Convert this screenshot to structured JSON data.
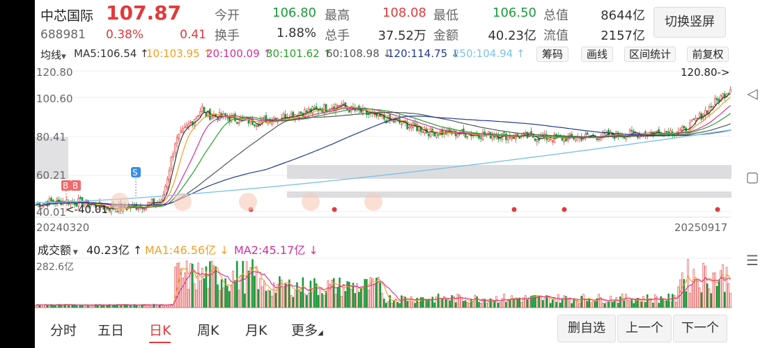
{
  "stock": {
    "name": "中芯国际",
    "price": "107.87",
    "code": "688981",
    "change_pct": "0.38%",
    "change_abs": "0.41"
  },
  "quote": {
    "open_label": "今开",
    "open": "106.80",
    "high_label": "最高",
    "high": "108.08",
    "low_label": "最低",
    "low": "106.50",
    "total_mv_label": "总值",
    "total_mv": "8644亿",
    "turnover_label": "换手",
    "turnover": "1.88%",
    "volume_label": "总手",
    "volume": "37.52万",
    "amount_label": "金额",
    "amount": "40.23亿",
    "float_mv_label": "流值",
    "float_mv": "2157亿"
  },
  "toggle_label": "切换竖屏",
  "ma_bar": {
    "type_label": "均线",
    "items": [
      {
        "text": "MA5:106.54 ↑",
        "color": "#333333"
      },
      {
        "text": "10:103.95 ↑",
        "color": "#f0a020"
      },
      {
        "text": "20:100.09 ↑",
        "color": "#d0309a"
      },
      {
        "text": "30:101.62 ↑",
        "color": "#28a028"
      },
      {
        "text": "60:108.98 ↓",
        "color": "#555555"
      },
      {
        "text": "120:114.75 ↓",
        "color": "#1f3a93"
      },
      {
        "text": "250:104.94 ↑",
        "color": "#7ec3e6"
      }
    ],
    "buttons": [
      "筹码",
      "画线",
      "区间统计",
      "前复权"
    ]
  },
  "kline": {
    "y_labels": [
      "120.80",
      "100.60",
      "80.41",
      "60.21",
      "40.01"
    ],
    "max_label": "120.80->",
    "min_label": "<-40.01",
    "start_date": "20240320",
    "end_date": "20250917",
    "markers": {
      "b": "B",
      "s": "S"
    }
  },
  "volume_bar": {
    "title": "成交额",
    "value": "40.23亿 ↑",
    "ma1": "MA1:46.56亿 ↓",
    "ma2": "MA2:45.17亿 ↓",
    "ma1_color": "#f0a020",
    "ma2_color": "#d0309a",
    "y_max_label": "282.6亿"
  },
  "tabs": [
    "分时",
    "五日",
    "日K",
    "周K",
    "月K",
    "更多"
  ],
  "active_tab": "日K",
  "footer_buttons": [
    "删自选",
    "上一个",
    "下一个"
  ],
  "colors": {
    "up": "#e23a3a",
    "down": "#1a9a3a",
    "accent": "#e23a3a"
  }
}
